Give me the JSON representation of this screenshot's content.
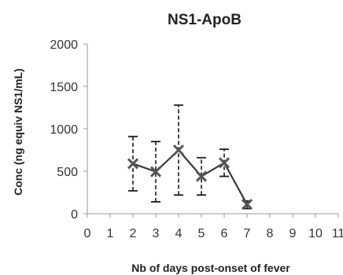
{
  "chart_data": {
    "type": "line",
    "title": "NS1-ApoB",
    "xlabel": "Nb of days post-onset of fever",
    "ylabel": "Conc (ng equiv NS1/mL)",
    "xlim": [
      0,
      11
    ],
    "ylim": [
      0,
      2000
    ],
    "x_ticks": [
      0,
      1,
      2,
      3,
      4,
      5,
      6,
      7,
      8,
      9,
      10,
      11
    ],
    "x_tick_labels": [
      "0",
      "1",
      "2",
      "3",
      "4",
      "5",
      "6",
      "7",
      "8",
      "9",
      "10",
      "11"
    ],
    "y_ticks": [
      0,
      500,
      1000,
      1500,
      2000
    ],
    "y_tick_labels": [
      "0",
      "500",
      "1000",
      "1500",
      "2000"
    ],
    "grid": false,
    "series": [
      {
        "x": [
          2,
          3,
          4,
          5,
          6,
          7
        ],
        "values": [
          590,
          495,
          750,
          440,
          600,
          110
        ],
        "error_low": [
          270,
          140,
          220,
          220,
          440,
          60
        ],
        "error_high": [
          910,
          850,
          1280,
          660,
          760,
          150
        ],
        "marker": "x",
        "color": "#3a3a3a"
      }
    ]
  }
}
